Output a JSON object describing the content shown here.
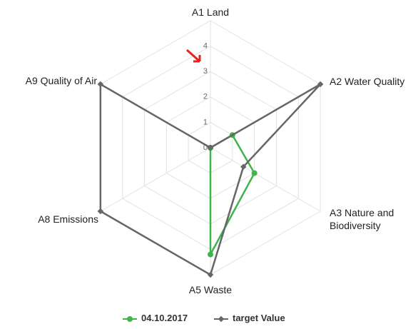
{
  "chart_data": {
    "type": "radar",
    "categories": [
      "A1 Land",
      "A2 Water Quality",
      "A3 Nature and Biodiversity",
      "A5 Waste",
      "A8 Emissions",
      "A9 Quality of Air"
    ],
    "series": [
      {
        "name": "04.10.2017",
        "color": "#3db54a",
        "values": [
          0,
          1,
          2,
          4.2,
          0,
          0
        ]
      },
      {
        "name": "target Value",
        "color": "#666666",
        "values": [
          0,
          5,
          1.5,
          5,
          5,
          5
        ]
      }
    ],
    "ylim": [
      0,
      5
    ],
    "yticks": [
      0,
      1,
      2,
      3,
      4
    ],
    "grid": true,
    "legend": "bottom"
  }
}
